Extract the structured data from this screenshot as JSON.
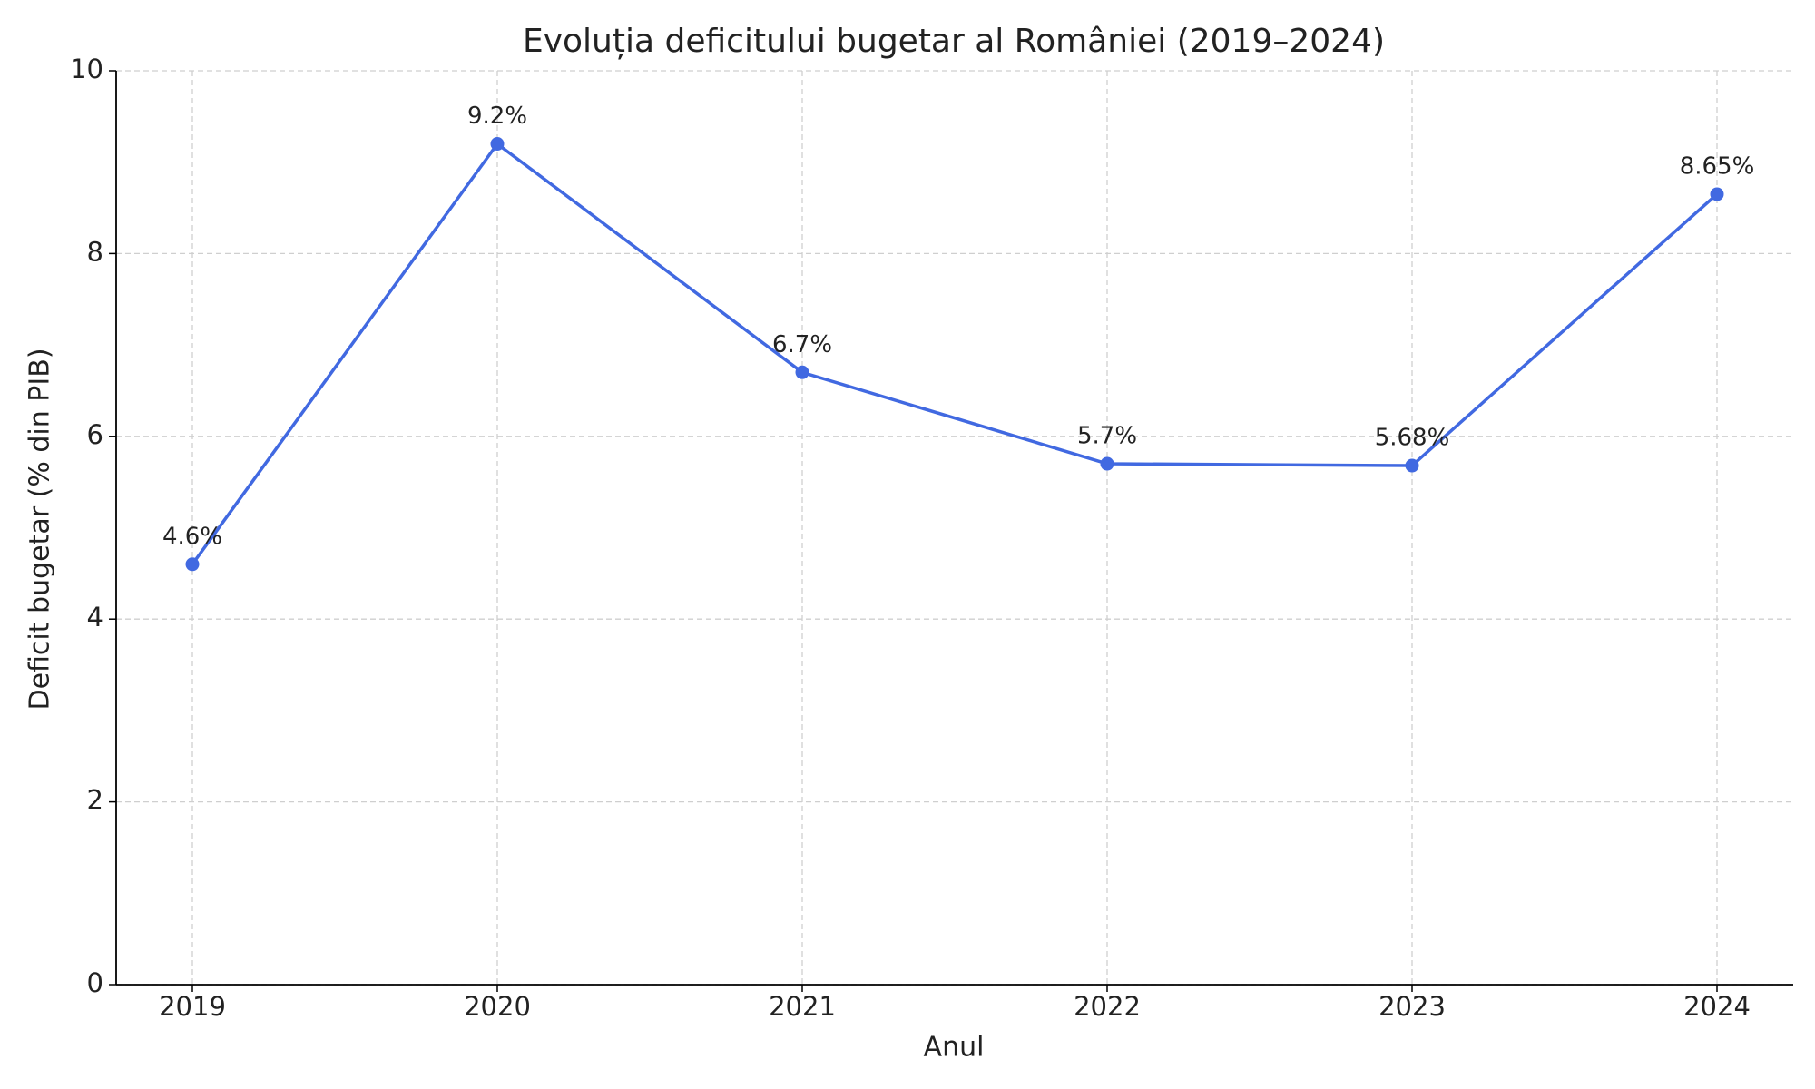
{
  "chart_data": {
    "type": "line",
    "title": "Evoluția deficitului bugetar al României (2019–2024)",
    "x_label": "Anul",
    "y_label": "Deficit bugetar (% din PIB)",
    "x": [
      2019,
      2020,
      2021,
      2022,
      2023,
      2024
    ],
    "values": [
      4.6,
      9.2,
      6.7,
      5.7,
      5.68,
      8.65
    ],
    "value_labels": [
      "4.6%",
      "9.2%",
      "6.7%",
      "5.7%",
      "5.68%",
      "8.65%"
    ],
    "color": "#4169e1",
    "xlim": [
      2018.75,
      2024.25
    ],
    "xticks": [
      2019,
      2020,
      2021,
      2022,
      2023,
      2024
    ],
    "ylim": [
      0,
      10
    ],
    "yticks": [
      0,
      2,
      4,
      6,
      8,
      10
    ],
    "grid": true
  }
}
